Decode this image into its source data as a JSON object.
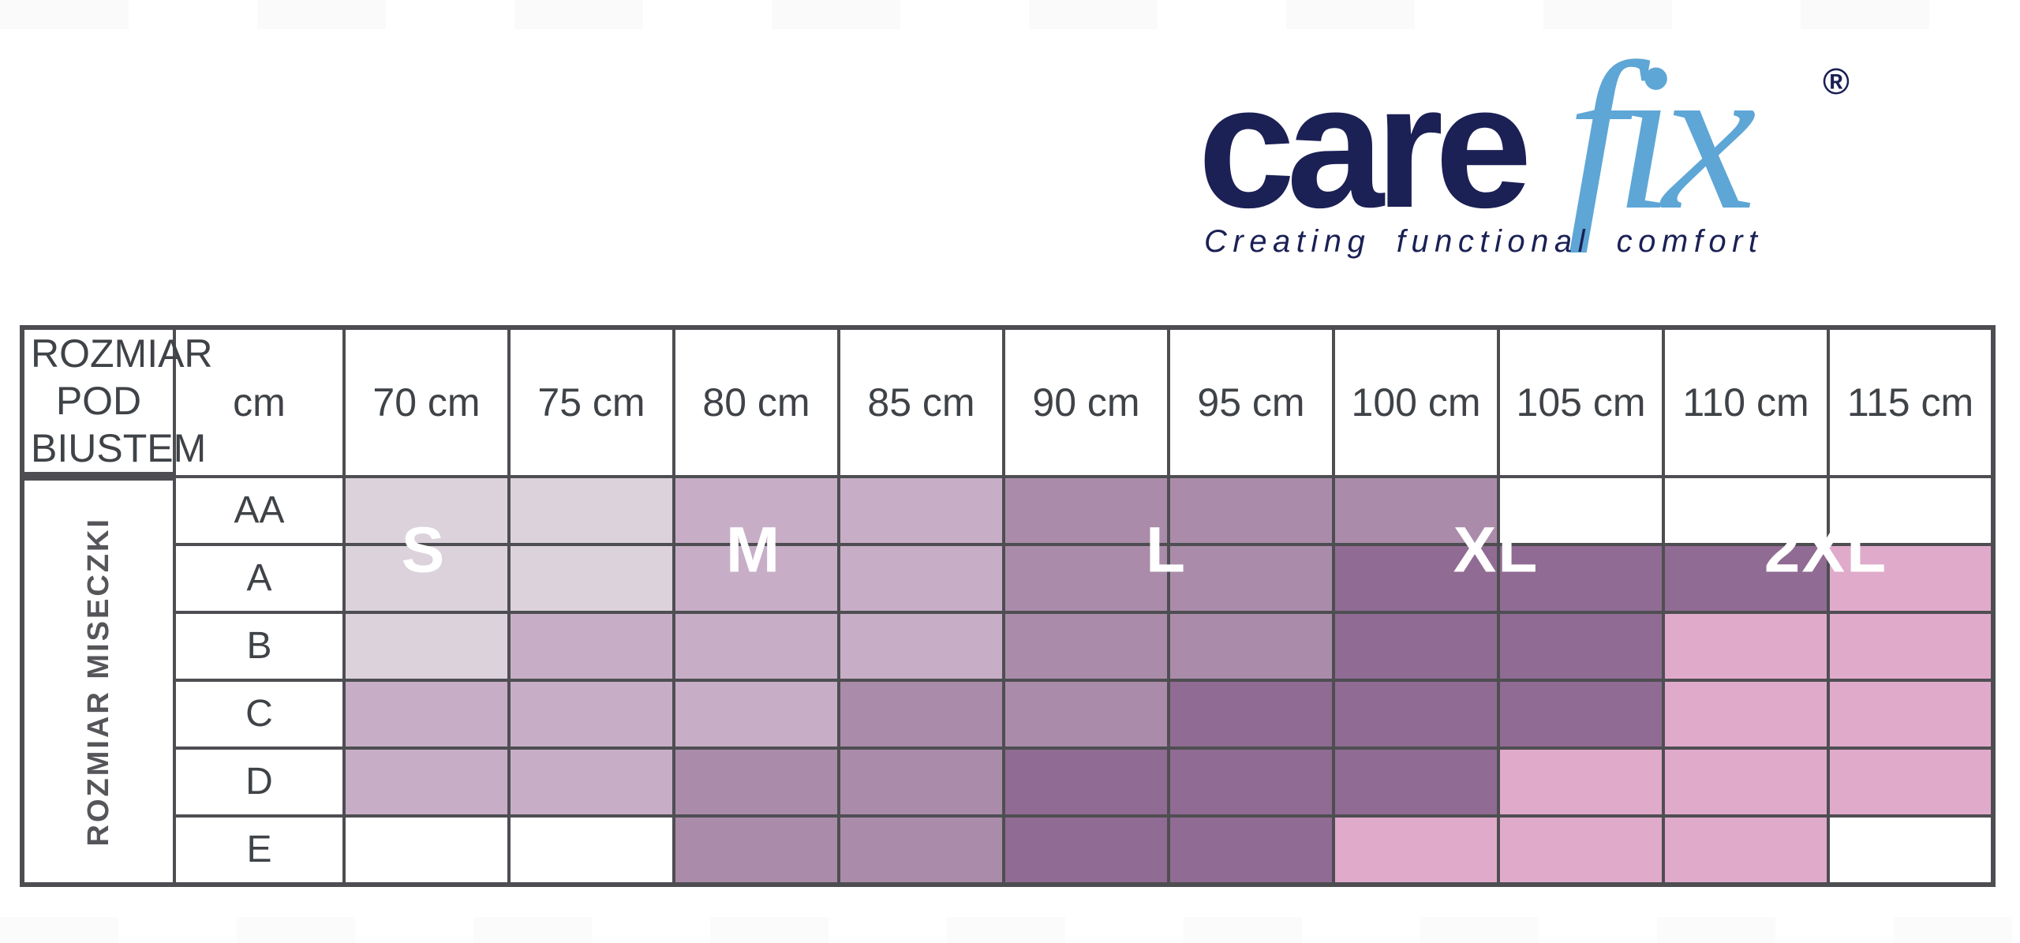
{
  "logo": {
    "brand_care": "care",
    "brand_fix": "fix",
    "registered_mark": "®",
    "tagline": "Creating functional comfort",
    "navy_color": "#1b2055",
    "blue_color": "#5ea6d6"
  },
  "size_chart": {
    "corner_header": "ROZMIAR POD BIUSTEM",
    "unit_header": "cm",
    "row_axis_label": "ROZMIAR MISECZKI",
    "grid_color": "#4e4e52"
  },
  "chart_data": {
    "type": "heatmap",
    "title": "",
    "x_axis_label": "ROZMIAR POD BIUSTEM (cm)",
    "y_axis_label": "ROZMIAR MISECZKI",
    "x_categories": [
      "70 cm",
      "75 cm",
      "80 cm",
      "85 cm",
      "90 cm",
      "95 cm",
      "100 cm",
      "105 cm",
      "110 cm",
      "115 cm"
    ],
    "y_categories": [
      "AA",
      "A",
      "B",
      "C",
      "D",
      "E"
    ],
    "cells": [
      [
        "S",
        "S",
        "M",
        "M",
        "L",
        "L",
        "L",
        "W",
        "W",
        "W"
      ],
      [
        "S",
        "S",
        "M",
        "M",
        "L",
        "L",
        "XL",
        "XL",
        "XL",
        "2XL"
      ],
      [
        "S",
        "M",
        "M",
        "M",
        "L",
        "L",
        "XL",
        "XL",
        "2XL",
        "2XL"
      ],
      [
        "M",
        "M",
        "M",
        "L",
        "L",
        "XL",
        "XL",
        "XL",
        "2XL",
        "2XL"
      ],
      [
        "M",
        "M",
        "L",
        "L",
        "XL",
        "XL",
        "XL",
        "2XL",
        "2XL",
        "2XL"
      ],
      [
        "W",
        "W",
        "L",
        "L",
        "XL",
        "XL",
        "2XL",
        "2XL",
        "2XL",
        "W"
      ]
    ],
    "zone_colors": {
      "S": "#dcd2dc",
      "M": "#c7aec6",
      "L": "#aa8caa",
      "XL": "#906b93",
      "2XL": "#e0aacb",
      "W": "#ffffff"
    },
    "legend_labels": [
      "S",
      "M",
      "L",
      "XL",
      "2XL"
    ],
    "legend_position": "inside-row-B",
    "grid": true
  }
}
